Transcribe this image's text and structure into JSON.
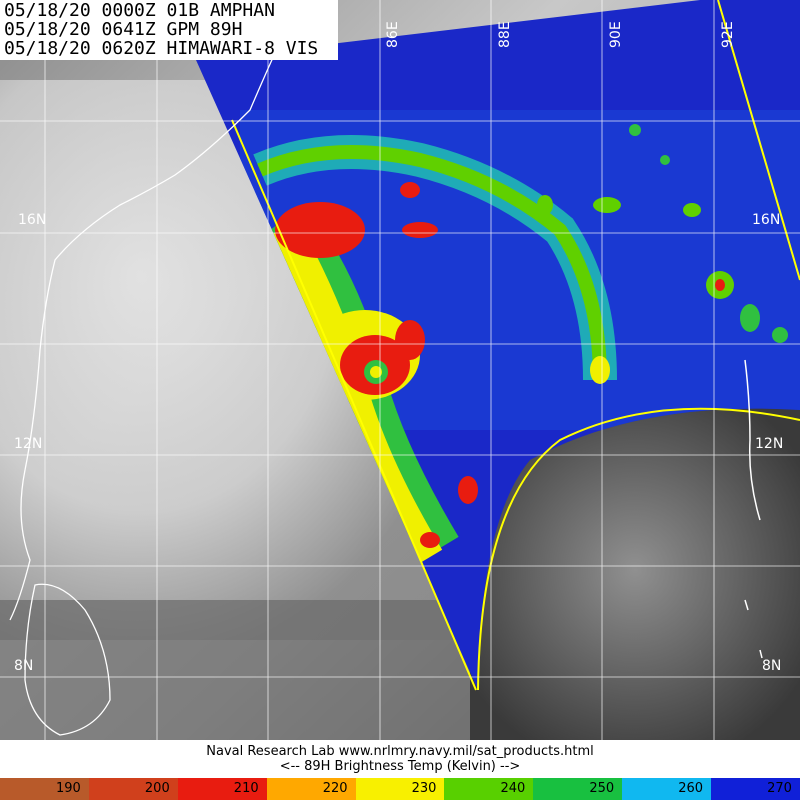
{
  "header": {
    "lines": [
      "05/18/20 0000Z 01B AMPHAN",
      "05/18/20 0641Z GPM 89H",
      "05/18/20 0620Z HIMAWARI-8 VIS"
    ]
  },
  "map": {
    "lat_labels": [
      "16N",
      "12N",
      "8N"
    ],
    "lon_labels": [
      "86E",
      "88E",
      "90E",
      "92E"
    ],
    "colors": {
      "land_outline": "#ffffff",
      "grid": "#ffffff",
      "swath_edge": "#ffff00",
      "ocean_cold": "#1020c8"
    }
  },
  "footer": {
    "line1": "Naval Research Lab  www.nrlmry.navy.mil/sat_products.html",
    "line2": "<--   89H Brightness Temp (Kelvin)  -->"
  },
  "colorbar": {
    "ticks": [
      "190",
      "200",
      "210",
      "220",
      "230",
      "240",
      "250",
      "260",
      "270"
    ],
    "colors": [
      "#b85a2a",
      "#d0401c",
      "#e81c10",
      "#ffa800",
      "#f8f000",
      "#58d000",
      "#18c040",
      "#10b8f0",
      "#1020d8"
    ]
  }
}
